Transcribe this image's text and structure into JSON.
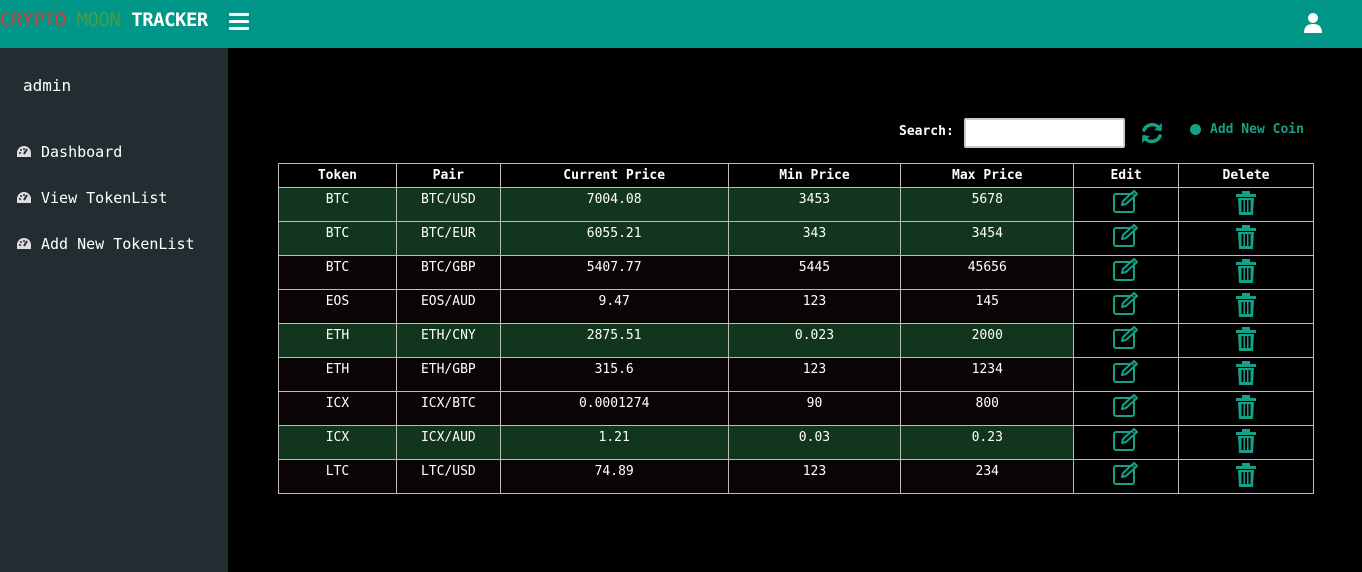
{
  "app": {
    "brand_part1": "CRYPTO ",
    "brand_part2": "MOON",
    "brand_part3": "TRACKER",
    "accent_color": "#009688"
  },
  "sidebar": {
    "username": "admin",
    "items": [
      {
        "label": "Dashboard",
        "icon": "dashboard-icon"
      },
      {
        "label": "View TokenList",
        "icon": "dashboard-icon"
      },
      {
        "label": "Add New TokenList",
        "icon": "dashboard-icon"
      }
    ]
  },
  "toolbar": {
    "search_label": "Search:",
    "search_value": "",
    "add_new_label": "Add New Coin"
  },
  "table": {
    "headers": [
      "Token",
      "Pair",
      "Current Price",
      "Min Price",
      "Max Price",
      "Edit",
      "Delete"
    ],
    "rows": [
      {
        "token": "BTC",
        "pair": "BTC/USD",
        "current": "7004.08",
        "min": "3453",
        "max": "5678",
        "highlight": true
      },
      {
        "token": "BTC",
        "pair": "BTC/EUR",
        "current": "6055.21",
        "min": "343",
        "max": "3454",
        "highlight": true
      },
      {
        "token": "BTC",
        "pair": "BTC/GBP",
        "current": "5407.77",
        "min": "5445",
        "max": "45656",
        "highlight": false
      },
      {
        "token": "EOS",
        "pair": "EOS/AUD",
        "current": "9.47",
        "min": "123",
        "max": "145",
        "highlight": false
      },
      {
        "token": "ETH",
        "pair": "ETH/CNY",
        "current": "2875.51",
        "min": "0.023",
        "max": "2000",
        "highlight": true
      },
      {
        "token": "ETH",
        "pair": "ETH/GBP",
        "current": "315.6",
        "min": "123",
        "max": "1234",
        "highlight": false
      },
      {
        "token": "ICX",
        "pair": "ICX/BTC",
        "current": "0.0001274",
        "min": "90",
        "max": "800",
        "highlight": false
      },
      {
        "token": "ICX",
        "pair": "ICX/AUD",
        "current": "1.21",
        "min": "0.03",
        "max": "0.23",
        "highlight": true
      },
      {
        "token": "LTC",
        "pair": "LTC/USD",
        "current": "74.89",
        "min": "123",
        "max": "234",
        "highlight": false
      }
    ]
  }
}
